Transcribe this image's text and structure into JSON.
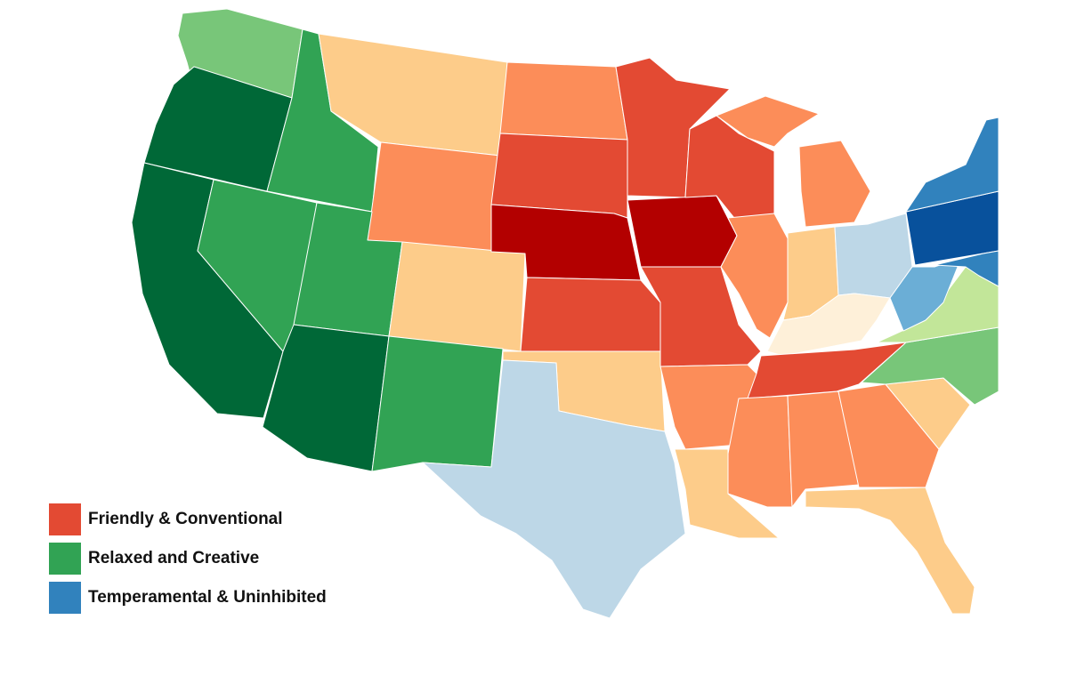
{
  "colors": {
    "red_dark": "#b30000",
    "red": "#e34a33",
    "orange": "#fc8d59",
    "peach": "#fdcc8a",
    "cream": "#fef0d9",
    "green_dark": "#006837",
    "green": "#31a354",
    "green_light": "#78c679",
    "green_pale": "#c2e699",
    "blue_pale": "#bdd7e7",
    "blue_light": "#6baed6",
    "blue": "#3182bd",
    "blue_dark": "#08519c"
  },
  "legend": [
    {
      "label": "Friendly & Conventional",
      "color": "#e34a33"
    },
    {
      "label": "Relaxed and Creative",
      "color": "#31a354"
    },
    {
      "label": "Temperamental & Uninhibited",
      "color": "#3182bd"
    }
  ]
}
